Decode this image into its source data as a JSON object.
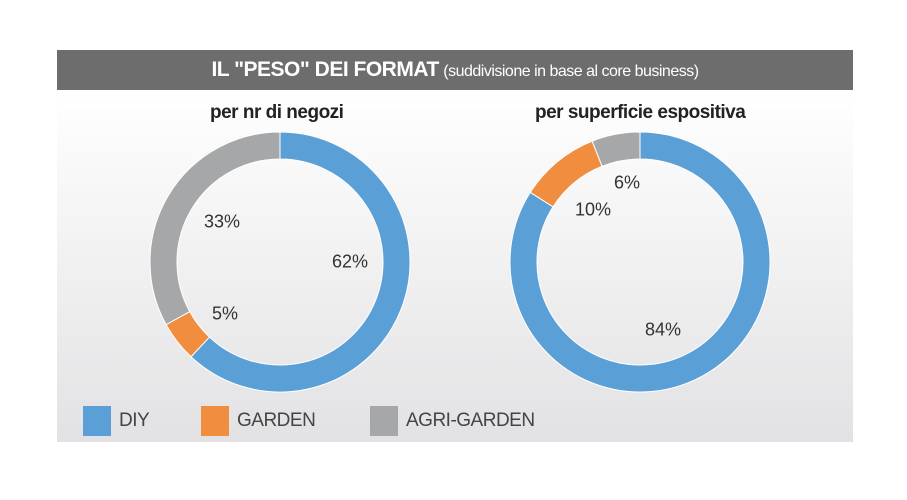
{
  "header": {
    "title_bold": "IL \"PESO\" DEI FORMAT",
    "title_rest": "(suddivisione in base al core business)"
  },
  "colors": {
    "DIY": "#5a9fd6",
    "GARDEN": "#f08d3f",
    "AGRI-GARDEN": "#a6a7a8"
  },
  "chart_data": [
    {
      "type": "pie",
      "title": "per nr di negozi",
      "categories": [
        "DIY",
        "GARDEN",
        "AGRI-GARDEN"
      ],
      "values": [
        62,
        5,
        33
      ],
      "labels": [
        "62%",
        "5%",
        "33%"
      ]
    },
    {
      "type": "pie",
      "title": "per superficie espositiva",
      "categories": [
        "DIY",
        "GARDEN",
        "AGRI-GARDEN"
      ],
      "values": [
        84,
        10,
        6
      ],
      "labels": [
        "84%",
        "10%",
        "6%"
      ]
    }
  ],
  "legend": [
    "DIY",
    "GARDEN",
    "AGRI-GARDEN"
  ]
}
